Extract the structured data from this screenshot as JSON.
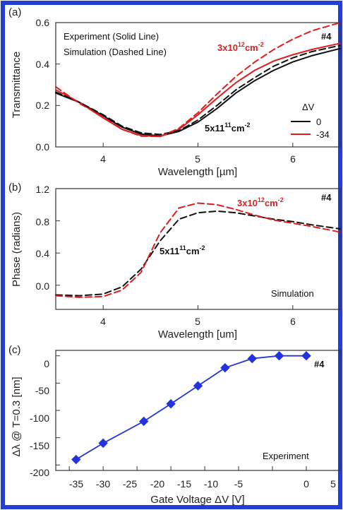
{
  "colors": {
    "border": "#1f3fd8",
    "black": "#111111",
    "red": "#e01b1b",
    "blue": "#2233dd"
  },
  "chart_data": [
    {
      "type": "line",
      "panel_label": "(a)",
      "xlabel": "Wavelength [µm]",
      "ylabel": "Transmittance",
      "xlim": [
        3.5,
        6.5
      ],
      "ylim": [
        0.0,
        0.6
      ],
      "xticks": [
        "4",
        "5",
        "6"
      ],
      "yticks": [
        "0.0",
        "0.2",
        "0.4",
        "0.6"
      ],
      "annotations": {
        "legend_line1": "Experiment (Solid Line)",
        "legend_line2": "Simulation (Dashed Line)",
        "sample": "#4",
        "red_density_base": "3x10",
        "red_density_exp": "12",
        "red_density_unit": "cm",
        "red_density_unit_exp": "-2",
        "black_density_base": "5x11",
        "black_density_exp": "11",
        "black_density_unit": "cm",
        "black_density_unit_exp": "-2",
        "dv_header": "ΔV"
      },
      "legend": [
        {
          "label": "0",
          "color": "#111111"
        },
        {
          "label": "-34",
          "color": "#e01b1b"
        }
      ],
      "series": [
        {
          "name": "0",
          "style": "solid",
          "color": "#111111",
          "x": [
            3.5,
            3.75,
            4.0,
            4.2,
            4.4,
            4.6,
            4.8,
            5.0,
            5.2,
            5.4,
            5.6,
            5.8,
            6.0,
            6.2,
            6.5
          ],
          "y": [
            0.26,
            0.215,
            0.15,
            0.095,
            0.062,
            0.053,
            0.075,
            0.12,
            0.185,
            0.26,
            0.32,
            0.37,
            0.41,
            0.44,
            0.475
          ]
        },
        {
          "name": "-34",
          "style": "solid",
          "color": "#e01b1b",
          "x": [
            3.5,
            3.75,
            4.0,
            4.2,
            4.4,
            4.6,
            4.8,
            5.0,
            5.2,
            5.4,
            5.6,
            5.8,
            6.0,
            6.2,
            6.5
          ],
          "y": [
            0.275,
            0.215,
            0.14,
            0.085,
            0.055,
            0.05,
            0.085,
            0.155,
            0.235,
            0.31,
            0.37,
            0.415,
            0.445,
            0.47,
            0.5
          ]
        },
        {
          "name": "0 simulation",
          "style": "dashed",
          "color": "#111111",
          "x": [
            3.5,
            3.75,
            4.0,
            4.2,
            4.4,
            4.6,
            4.8,
            5.0,
            5.2,
            5.4,
            5.6,
            5.8,
            6.0,
            6.2,
            6.5
          ],
          "y": [
            0.265,
            0.215,
            0.155,
            0.1,
            0.068,
            0.06,
            0.078,
            0.13,
            0.2,
            0.275,
            0.335,
            0.39,
            0.43,
            0.46,
            0.49
          ]
        },
        {
          "name": "-34 simulation",
          "style": "dashed",
          "color": "#e01b1b",
          "x": [
            3.5,
            3.75,
            4.0,
            4.2,
            4.4,
            4.6,
            4.8,
            5.0,
            5.2,
            5.4,
            5.6,
            5.8,
            6.0,
            6.2,
            6.5
          ],
          "y": [
            0.29,
            0.21,
            0.145,
            0.085,
            0.052,
            0.05,
            0.09,
            0.165,
            0.255,
            0.34,
            0.41,
            0.47,
            0.52,
            0.56,
            0.6
          ]
        }
      ]
    },
    {
      "type": "line",
      "panel_label": "(b)",
      "xlabel": "Wavelength [um]",
      "ylabel": "Phase (radians)",
      "xlim": [
        3.5,
        6.5
      ],
      "ylim": [
        -0.3,
        1.2
      ],
      "xticks": [
        "4",
        "5",
        "6"
      ],
      "yticks": [
        "0.0",
        "0.4",
        "0.8",
        "1.2"
      ],
      "annotations": {
        "sample": "#4",
        "red_density_base": "3x10",
        "red_density_exp": "12",
        "red_density_unit": "cm",
        "red_density_unit_exp": "-2",
        "black_density_base": "5x11",
        "black_density_exp": "11",
        "black_density_unit": "cm",
        "black_density_unit_exp": "-2",
        "corner": "Simulation"
      },
      "series": [
        {
          "name": "black simulation",
          "style": "dashed",
          "color": "#111111",
          "x": [
            3.5,
            3.75,
            4.0,
            4.2,
            4.4,
            4.6,
            4.8,
            5.0,
            5.2,
            5.4,
            5.6,
            5.8,
            6.0,
            6.2,
            6.5
          ],
          "y": [
            -0.12,
            -0.13,
            -0.11,
            -0.02,
            0.2,
            0.55,
            0.82,
            0.9,
            0.92,
            0.9,
            0.86,
            0.82,
            0.79,
            0.75,
            0.7
          ]
        },
        {
          "name": "red simulation",
          "style": "dashed",
          "color": "#e01b1b",
          "x": [
            3.5,
            3.75,
            4.0,
            4.2,
            4.4,
            4.6,
            4.8,
            5.0,
            5.2,
            5.4,
            5.6,
            5.8,
            6.0,
            6.2,
            6.5
          ],
          "y": [
            -0.13,
            -0.15,
            -0.14,
            -0.06,
            0.16,
            0.65,
            0.96,
            1.02,
            1.0,
            0.94,
            0.87,
            0.81,
            0.77,
            0.73,
            0.66
          ]
        }
      ]
    },
    {
      "type": "line",
      "panel_label": "(c)",
      "xlabel": "Gate Voltage ΔV [V]",
      "ylabel": "Δλ @ T=0.3 [nm]",
      "xlim": [
        -37,
        5
      ],
      "ylim": [
        -210,
        10
      ],
      "xticks": [
        "-35",
        "-30",
        "-25",
        "-20",
        "-15",
        "-10",
        "-5",
        "0",
        "5"
      ],
      "yticks": [
        "0",
        "-50",
        "-100",
        "-150",
        "-200"
      ],
      "annotations": {
        "sample": "#4",
        "corner": "Experiment"
      },
      "series": [
        {
          "name": "Δλ",
          "style": "solid-markers",
          "color": "#2233dd",
          "x": [
            -34,
            -30,
            -24,
            -20,
            -16,
            -12,
            -8,
            -4,
            0
          ],
          "y": [
            -190,
            -160,
            -120,
            -88,
            -55,
            -22,
            -5,
            0,
            0
          ]
        }
      ]
    }
  ]
}
